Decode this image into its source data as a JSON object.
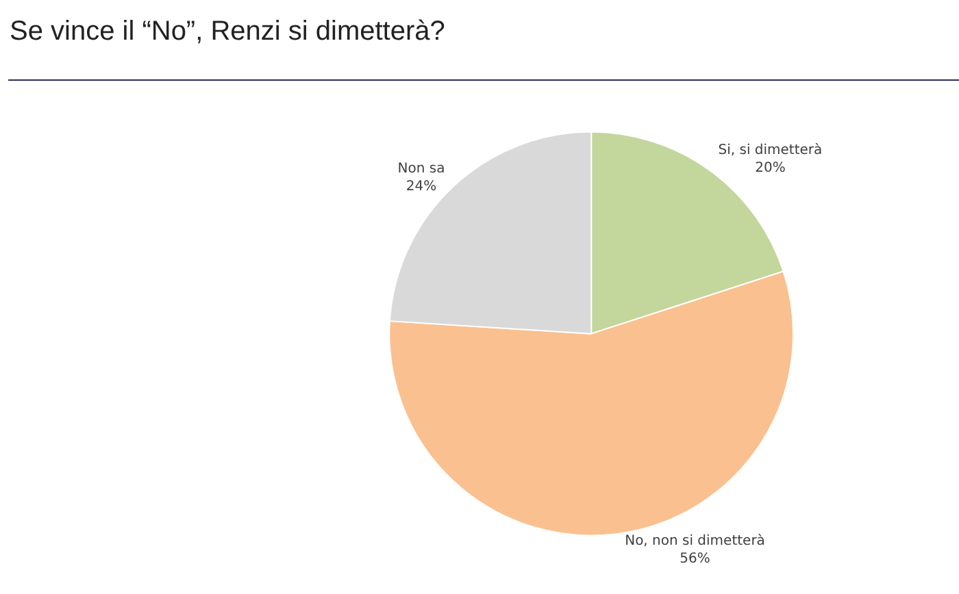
{
  "chart_data": {
    "type": "pie",
    "title": "Se vince il “No”, Renzi si dimetterà?",
    "categories": [
      "Si, si dimetterà",
      "No, non si dimetterà",
      "Non sa"
    ],
    "values": [
      20,
      56,
      24
    ],
    "colors": [
      "#c3d69b",
      "#fac090",
      "#d9d9d9"
    ],
    "value_labels": [
      "20%",
      "56%",
      "24%"
    ],
    "legend": false
  }
}
